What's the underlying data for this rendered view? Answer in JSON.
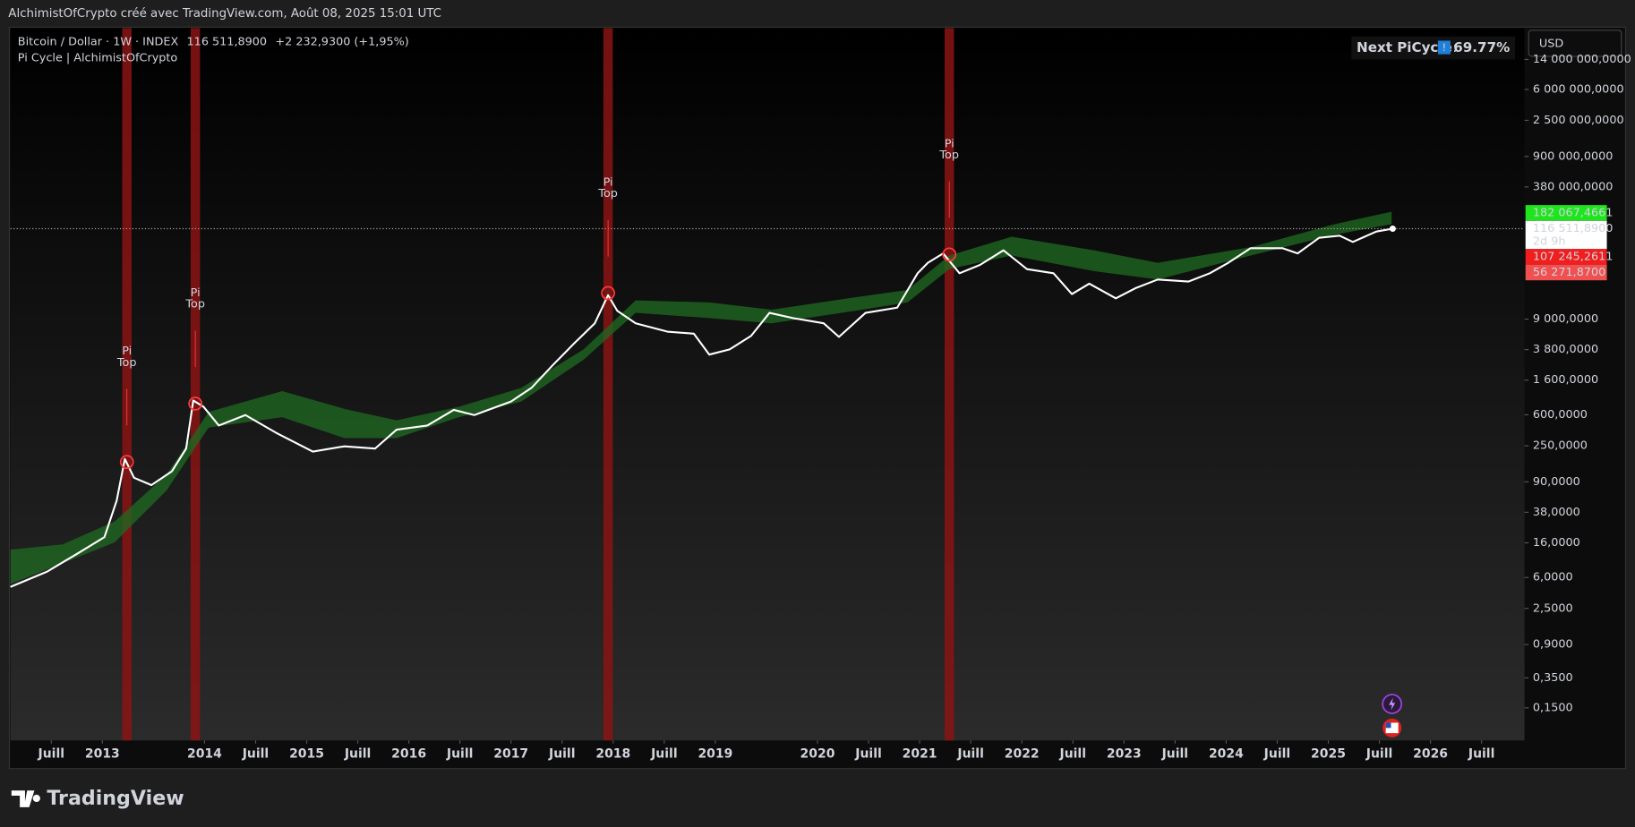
{
  "header": {
    "caption": "AlchimistOfCrypto créé avec TradingView.com, Août 08, 2025 15:01 UTC",
    "symbol": "Bitcoin / Dollar · 1W · INDEX",
    "price": "116 511,8900",
    "change": "+2 232,9300 (+1,95%)",
    "indicator": "Pi Cycle | AlchimistOfCrypto",
    "next_label": "Next PiCycle",
    "next_icon": "!",
    "next_sep": ":",
    "next_value": "69.77%",
    "currency": "USD",
    "brand": "TradingView"
  },
  "chart_data": {
    "type": "line",
    "log_scale": true,
    "grid": false,
    "x": [
      2012.1,
      2012.46,
      2012.77,
      2013.02,
      2013.14,
      2013.22,
      2013.31,
      2013.48,
      2013.68,
      2013.82,
      2013.89,
      2013.99,
      2014.14,
      2014.4,
      2014.7,
      2015.06,
      2015.37,
      2015.67,
      2015.88,
      2016.18,
      2016.44,
      2016.64,
      2017.0,
      2017.2,
      2017.41,
      2017.61,
      2017.82,
      2017.95,
      2018.04,
      2018.22,
      2018.53,
      2018.79,
      2018.94,
      2019.14,
      2019.35,
      2019.53,
      2019.76,
      2020.06,
      2020.21,
      2020.47,
      2020.78,
      2020.98,
      2021.08,
      2021.23,
      2021.39,
      2021.59,
      2021.82,
      2022.05,
      2022.31,
      2022.49,
      2022.66,
      2022.92,
      2023.12,
      2023.33,
      2023.63,
      2023.84,
      2024.02,
      2024.24,
      2024.55,
      2024.7,
      2024.91,
      2025.11,
      2025.24,
      2025.47,
      2025.63
    ],
    "series": [
      {
        "color": "#ffffff",
        "values": [
          4.6,
          7.1,
          12.1,
          18.8,
          52.9,
          172,
          101,
          82,
          121,
          231,
          900,
          754,
          443,
          596,
          361,
          212,
          246,
          231,
          394,
          443,
          690,
          596,
          873,
          1284,
          2457,
          4430,
          8000,
          17750,
          11400,
          8000,
          6320,
          5960,
          3300,
          3820,
          5610,
          10750,
          9270,
          8000,
          5450,
          10750,
          12450,
          32980,
          44300,
          57850,
          32980,
          41760,
          63100,
          37100,
          32980,
          18290,
          24560,
          16230,
          21830,
          27630,
          26060,
          32980,
          44300,
          67050,
          67050,
          57850,
          90000,
          95500,
          80000,
          107500,
          116511.89
        ]
      }
    ],
    "band": {
      "color": "#1f6b22",
      "x": [
        2012.1,
        2012.61,
        2013.12,
        2013.63,
        2014.04,
        2014.76,
        2015.37,
        2015.88,
        2016.49,
        2017.1,
        2017.71,
        2018.22,
        2018.94,
        2019.55,
        2020.37,
        2020.88,
        2021.29,
        2021.9,
        2022.71,
        2023.33,
        2024.24,
        2025.06,
        2025.62
      ],
      "upper": [
        13.2,
        15.3,
        29.3,
        111,
        651,
        1173,
        710,
        513,
        754,
        1284,
        3820,
        15320,
        14440,
        11750,
        16720,
        20570,
        54450,
        92700,
        63100,
        44300,
        69000,
        132200,
        188300
      ],
      "lower": [
        5.0,
        9.0,
        16.2,
        71,
        418,
        561,
        310,
        310,
        561,
        873,
        2850,
        10750,
        9270,
        8000,
        11400,
        14440,
        37100,
        54450,
        35000,
        27630,
        54450,
        98300,
        132200
      ]
    },
    "pi_tops": [
      {
        "x": 2013.24,
        "value": 158,
        "label": [
          "Pi",
          "Top"
        ]
      },
      {
        "x": 2013.91,
        "value": 824,
        "label": [
          "Pi",
          "Top"
        ]
      },
      {
        "x": 2017.95,
        "value": 18840,
        "label": [
          "Pi",
          "Top"
        ]
      },
      {
        "x": 2021.29,
        "value": 56150,
        "label": [
          "Pi",
          "Top"
        ]
      }
    ],
    "pi_color": "#ff3b3b",
    "bar_color": "#8a1414",
    "price_labels": [
      {
        "value": 182067.4661,
        "label": "182 067,4661",
        "color": "#1ee51e",
        "text_color": "#000000"
      },
      {
        "value": 116511.89,
        "label": "116 511,8900",
        "sub": "2d 9h",
        "color": "#ffffff",
        "text_color": "#131313"
      },
      {
        "value": 107245.2611,
        "label": "107 245,2611",
        "color": "#f01e1e",
        "text_color": "#ffffff"
      },
      {
        "value": 56271.87,
        "label": "56 271,8700",
        "color": "#f05050",
        "text_color": "#ffffff"
      }
    ],
    "xlim": [
      2012.1,
      2026.92
    ],
    "ylim": [
      0.0596,
      33980000
    ],
    "xticks": [
      {
        "value": 2012.5,
        "label": "Juill"
      },
      2013,
      2014,
      {
        "value": 2014.5,
        "label": "Juill"
      },
      2015,
      {
        "value": 2015.5,
        "label": "Juill"
      },
      2016,
      {
        "value": 2016.5,
        "label": "Juill"
      },
      2017,
      {
        "value": 2017.5,
        "label": "Juill"
      },
      2018,
      {
        "value": 2018.5,
        "label": "Juill"
      },
      2019,
      2020,
      {
        "value": 2020.5,
        "label": "Juill"
      },
      2021,
      {
        "value": 2021.5,
        "label": "Juill"
      },
      2022,
      {
        "value": 2022.5,
        "label": "Juill"
      },
      2023,
      {
        "value": 2023.5,
        "label": "Juill"
      },
      2024,
      {
        "value": 2024.5,
        "label": "Juill"
      },
      2025,
      {
        "value": 2025.5,
        "label": "Juill"
      },
      2026,
      {
        "value": 2026.5,
        "label": "Juill"
      }
    ],
    "yticks": [
      {
        "value": 14000000,
        "label": "14 000 000,0000"
      },
      {
        "value": 6000000,
        "label": "6 000 000,0000"
      },
      {
        "value": 2500000,
        "label": "2 500 000,0000"
      },
      {
        "value": 900000,
        "label": "900 000,0000"
      },
      {
        "value": 380000,
        "label": "380 000,0000"
      },
      {
        "value": 9000,
        "label": "9 000,0000"
      },
      {
        "value": 3800,
        "label": "3 800,0000"
      },
      {
        "value": 1600,
        "label": "1 600,0000"
      },
      {
        "value": 600,
        "label": "600,0000"
      },
      {
        "value": 250,
        "label": "250,0000"
      },
      {
        "value": 90,
        "label": "90,0000"
      },
      {
        "value": 38,
        "label": "38,0000"
      },
      {
        "value": 16,
        "label": "16,0000"
      },
      {
        "value": 6,
        "label": "6,0000"
      },
      {
        "value": 2.5,
        "label": "2,5000"
      },
      {
        "value": 0.9,
        "label": "0,9000"
      },
      {
        "value": 0.35,
        "label": "0,3500"
      },
      {
        "value": 0.15,
        "label": "0,1500"
      }
    ]
  }
}
